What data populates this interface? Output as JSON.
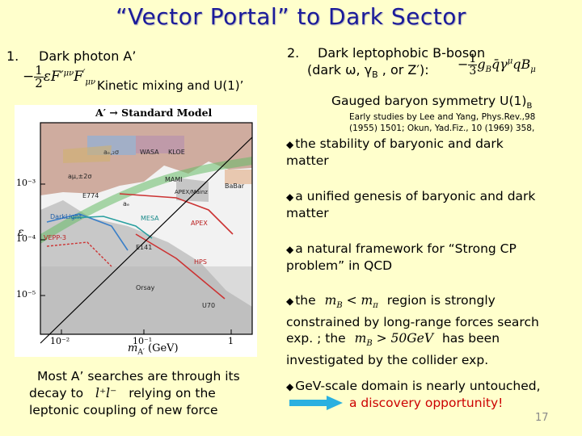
{
  "slide": {
    "title": "“Vector Portal” to Dark Sector",
    "page_number": "17"
  },
  "left": {
    "item_number": "1.",
    "heading": "Dark photon A’",
    "formula": {
      "frac_num": "1",
      "frac_den": "2",
      "term": "εF′",
      "sup": "μν",
      "tail": "F",
      "tail_sup": "′",
      "tail_sub": "μν"
    },
    "mixing_label": "Kinetic mixing and U(1)’",
    "plot": {
      "header": "A′ → Standard Model",
      "ylabel": "ε",
      "xlabel": "m",
      "xlabel_sub": "A′",
      "xlabel_unit": " (GeV)",
      "y_ticks": [
        "10⁻³",
        "10⁻⁴",
        "10⁻⁵"
      ],
      "x_ticks": [
        "10⁻²",
        "10⁻¹",
        "1"
      ],
      "labels": {
        "aeamu": "aₑ,₂σ",
        "kaon": "KLOE",
        "kloe": "KLOE",
        "ae": "aₑ",
        "amu_fav": "aμ,±2σ",
        "babar": "BaBar",
        "d774": "E774",
        "mami": "MAMI",
        "apex": "APEX/Mainz",
        "darklight": "DarkLight",
        "mesa": "MESA",
        "aphx": "APEX",
        "vepp": "VEPP-3",
        "e141": "E141",
        "orsay": "Orsay",
        "hps": "HPS",
        "u70": "U70",
        "wasa": "WASA"
      }
    },
    "caption_1": "Most A’ searches are through its",
    "caption_2a": "decay to",
    "caption_math": "l⁺l⁻",
    "caption_2b": "relying on the",
    "caption_3": "leptonic coupling of new force"
  },
  "right": {
    "item_number": "2.",
    "heading_1": "Dark leptophobic B-boson",
    "heading_2": "(dark ω, γ",
    "heading_2_sub": "B",
    "heading_2_tail": " , or Z′):",
    "formula": {
      "frac_num": "1",
      "frac_den": "3",
      "term": "g",
      "term_sub": "B",
      "rest": "q̄γ",
      "rest_sup": "μ",
      "rest2": "qB",
      "rest2_sub": "μ"
    },
    "gauged": "Gauged baryon symmetry U(1)",
    "gauged_sub": "B",
    "ref_1": "Early studies by Lee and Yang, Phys.Rev.,98",
    "ref_2": "(1955) 1501; Okun, Yad.Fiz., 10 (1969) 358,",
    "bullet_glyph": "u",
    "bullets": [
      {
        "line1": "the stability of baryonic and dark",
        "line2": "matter"
      },
      {
        "line1": "a unified genesis of baryonic and dark",
        "line2": "matter"
      },
      {
        "line1": "a natural framework for “Strong CP",
        "line2": "problem” in QCD"
      }
    ],
    "b4": {
      "pre": "the",
      "math_1": "m",
      "math_1_sub": "B",
      "math_1_op": " < m",
      "math_1_sub2": "π",
      "post": "region is strongly",
      "line2": "constrained by long-range forces search",
      "line3_pre": "exp. ; the",
      "math_2": "m",
      "math_2_sub": "B",
      "math_2_op": " > 50GeV",
      "line3_post": "has been",
      "line4": "investigated by the collider exp."
    },
    "b5": {
      "line1": "GeV-scale domain is nearly untouched,",
      "line2": "a discovery opportunity!"
    }
  },
  "colors": {
    "background": "#ffffcc",
    "title": "#1b1b9a",
    "highlight": "#cc0000",
    "arrow": "#2ab0e0"
  }
}
